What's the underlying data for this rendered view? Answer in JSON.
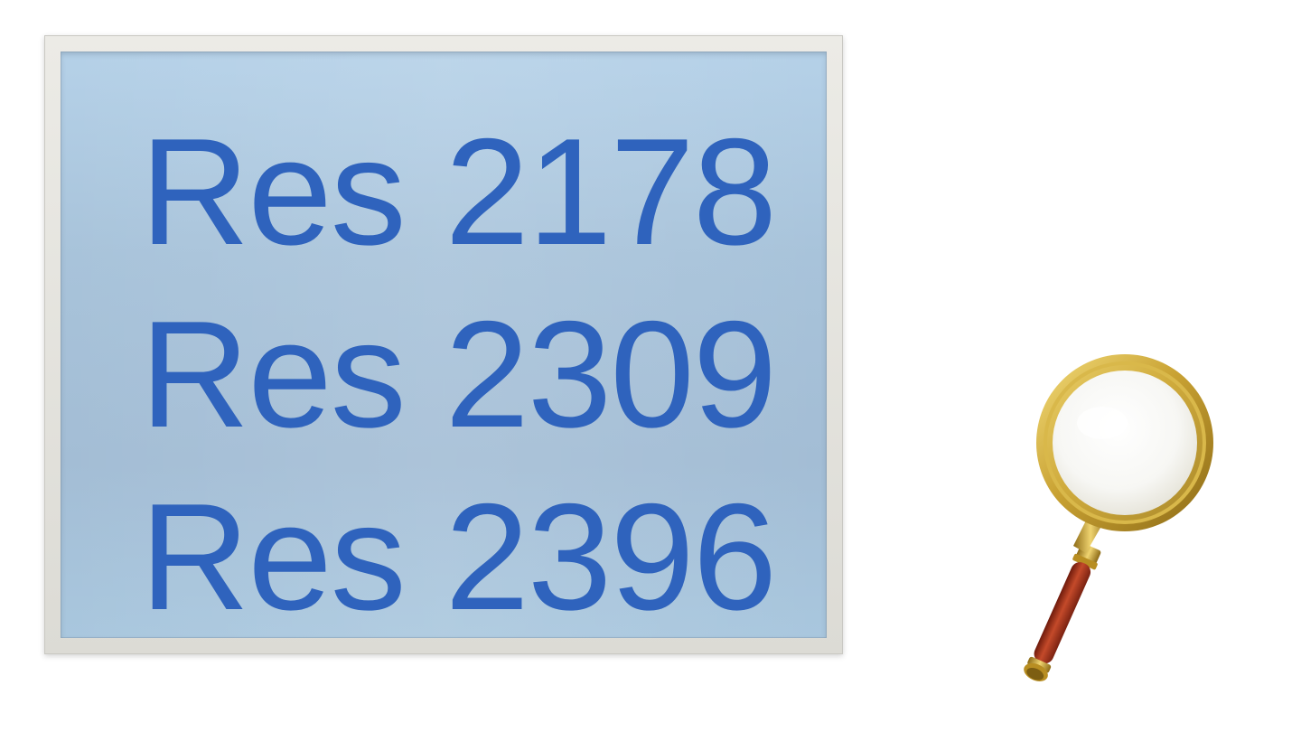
{
  "lines": [
    "Res 2178",
    "Res 2309",
    "Res 2396"
  ],
  "colors": {
    "text": "#2f63bd",
    "panel": "#a8c3da",
    "frame": "#e3e2dc",
    "lens_rim": "#c9a233",
    "handle": "#a8321e"
  },
  "icons": [
    "magnifying-glass-icon"
  ]
}
